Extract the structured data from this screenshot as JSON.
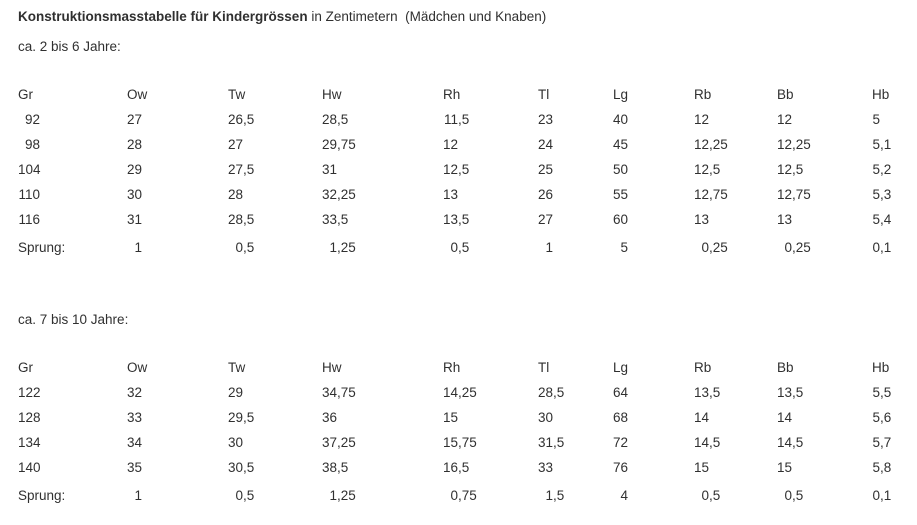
{
  "title": {
    "bold": "Konstruktionsmasstabelle für Kindergrössen",
    "rest": " in Zentimetern  (Mädchen und Knaben)"
  },
  "sections": [
    {
      "age_label": "ca. 2 bis 6 Jahre:",
      "columns": [
        "Gr",
        "Ow",
        "Tw",
        "Hw",
        "Rh",
        "Tl",
        "Lg",
        "Rb",
        "Bb",
        "Hb"
      ],
      "rows": [
        [
          "92",
          "27",
          "26,5",
          "28,5",
          "11,5",
          "23",
          "40",
          "12",
          "12",
          "5"
        ],
        [
          "98",
          "28",
          "27",
          "29,75",
          "12",
          "24",
          "45",
          "12,25",
          "12,25",
          "5,1"
        ],
        [
          "104",
          "29",
          "27,5",
          "31",
          "12,5",
          "25",
          "50",
          "12,5",
          "12,5",
          "5,2"
        ],
        [
          "110",
          "30",
          "28",
          "32,25",
          "13",
          "26",
          "55",
          "12,75",
          "12,75",
          "5,3"
        ],
        [
          "116",
          "31",
          "28,5",
          "33,5",
          "13,5",
          "27",
          "60",
          "13",
          "13",
          "5,4"
        ]
      ],
      "sprung_label": "Sprung:",
      "sprung": [
        "1",
        "0,5",
        "1,25",
        "0,5",
        "1",
        "5",
        "0,25",
        "0,25",
        "0,1"
      ]
    },
    {
      "age_label": "ca. 7 bis 10 Jahre:",
      "columns": [
        "Gr",
        "Ow",
        "Tw",
        "Hw",
        "Rh",
        "Tl",
        "Lg",
        "Rb",
        "Bb",
        "Hb"
      ],
      "rows": [
        [
          "122",
          "32",
          "29",
          "34,75",
          "14,25",
          "28,5",
          "64",
          "13,5",
          "13,5",
          "5,5"
        ],
        [
          "128",
          "33",
          "29,5",
          "36",
          "15",
          "30",
          "68",
          "14",
          "14",
          "5,6"
        ],
        [
          "134",
          "34",
          "30",
          "37,25",
          "15,75",
          "31,5",
          "72",
          "14,5",
          "14,5",
          "5,7"
        ],
        [
          "140",
          "35",
          "30,5",
          "38,5",
          "16,5",
          "33",
          "76",
          "15",
          "15",
          "5,8"
        ]
      ],
      "sprung_label": "Sprung:",
      "sprung": [
        "1",
        "0,5",
        "1,25",
        "0,75",
        "1,5",
        "4",
        "0,5",
        "0,5",
        "0,1"
      ]
    }
  ]
}
